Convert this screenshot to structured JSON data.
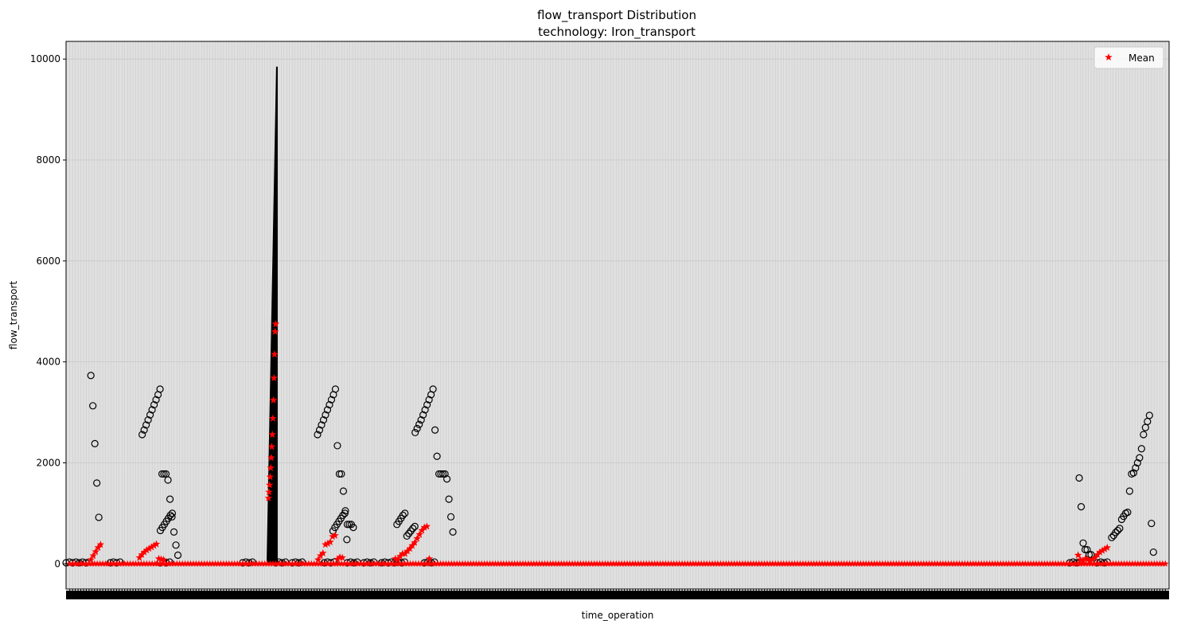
{
  "chart_data": {
    "type": "box",
    "title": "flow_transport Distribution",
    "subtitle": "technology: Iron_transport",
    "xlabel": "time_operation",
    "ylabel": "flow_transport",
    "ylim": [
      -500,
      10350
    ],
    "yticks": [
      0,
      2000,
      4000,
      6000,
      8000,
      10000
    ],
    "category_count": 400,
    "grid": true,
    "legend": {
      "placement": "upper-right",
      "entries": [
        {
          "label": "Mean",
          "marker": "star",
          "color": "#ff0000"
        }
      ]
    },
    "colors": {
      "plot_background": "#e0e0e0",
      "mean": "#ff0000",
      "box": "#000000",
      "grid": "#c8c8c8"
    },
    "spike_box": {
      "whisker_top": 9850,
      "mean_min": 1300,
      "mean_max": 4750
    },
    "outlier_groups": [
      {
        "name": "cluster-a",
        "values": [
          3730,
          3130,
          2380,
          1600,
          920
        ]
      },
      {
        "name": "cluster-b",
        "values": [
          2560,
          2650,
          2750,
          2850,
          2950,
          3050,
          3150,
          3250,
          3350,
          3460,
          1780,
          1780,
          1780,
          1660,
          1280,
          930,
          630,
          370,
          170
        ]
      },
      {
        "name": "cluster-b2",
        "values": [
          660,
          720,
          780,
          840,
          900,
          960,
          1000
        ]
      },
      {
        "name": "cluster-c",
        "values": [
          2560,
          2650,
          2750,
          2850,
          2950,
          3050,
          3150,
          3250,
          3350,
          3460,
          2340,
          1780,
          1780,
          1440,
          1050,
          780,
          780,
          780,
          720
        ]
      },
      {
        "name": "cluster-c2",
        "values": [
          650,
          720,
          780,
          840,
          900,
          960,
          1000,
          480
        ]
      },
      {
        "name": "cluster-d",
        "values": [
          2600,
          2680,
          2760,
          2850,
          2950,
          3050,
          3150,
          3250,
          3350,
          3460,
          2650,
          2130,
          1780,
          1780,
          1780,
          1780,
          1680,
          1280,
          930,
          630
        ]
      },
      {
        "name": "cluster-d2",
        "values": [
          780,
          840,
          900,
          960,
          1000,
          550,
          600,
          650,
          700,
          740
        ]
      },
      {
        "name": "cluster-e",
        "values": [
          1700,
          1130,
          410,
          280,
          280,
          180,
          180
        ]
      },
      {
        "name": "cluster-f",
        "values": [
          520,
          560,
          620,
          660,
          700,
          880,
          940,
          1000,
          1020,
          1440,
          1780,
          1800,
          1900,
          2000,
          2100,
          2280,
          2560,
          2700,
          2820,
          2940,
          800,
          230
        ]
      }
    ],
    "mean_clusters": [
      {
        "name": "means-a",
        "values": [
          80,
          160,
          240,
          320,
          380
        ]
      },
      {
        "name": "means-b",
        "values": [
          120,
          180,
          230,
          270,
          300,
          330,
          360,
          390,
          100,
          90,
          80
        ]
      },
      {
        "name": "means-c",
        "values": [
          1300,
          1420,
          1560,
          1720,
          1900,
          2100,
          2320,
          2560,
          2880,
          3240,
          3680,
          4150,
          4600,
          4750
        ]
      },
      {
        "name": "means-d",
        "values": [
          80,
          160,
          210,
          380,
          400,
          430,
          540,
          560,
          90,
          130,
          120
        ]
      },
      {
        "name": "means-e",
        "values": [
          100,
          80,
          150,
          200,
          200,
          250,
          300,
          360,
          420,
          500,
          580,
          660,
          720,
          740,
          100
        ]
      },
      {
        "name": "means-f",
        "values": [
          170,
          80,
          60,
          100,
          90,
          60,
          80,
          120,
          180,
          230,
          260,
          290,
          320
        ]
      }
    ]
  }
}
